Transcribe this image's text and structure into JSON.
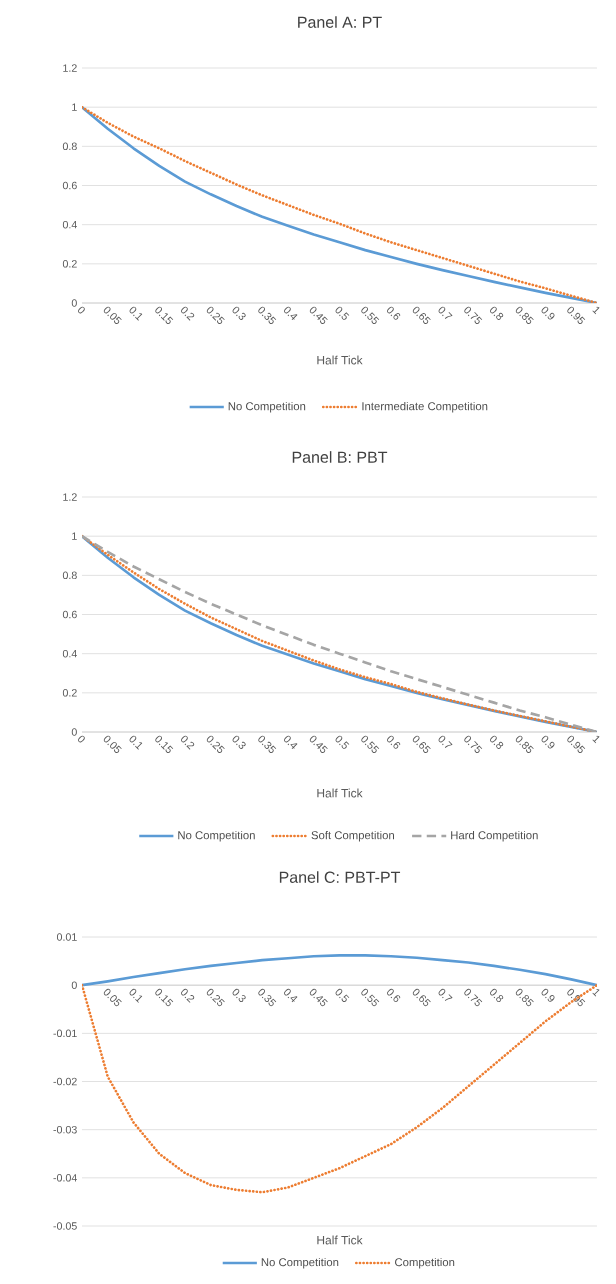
{
  "chart_data": [
    {
      "type": "line",
      "title": "Panel A: PT",
      "xlabel": "Half Tick",
      "categories": [
        "0",
        "0.05",
        "0.1",
        "0.15",
        "0.2",
        "0.25",
        "0.3",
        "0.35",
        "0.4",
        "0.45",
        "0.5",
        "0.55",
        "0.6",
        "0.65",
        "0.7",
        "0.75",
        "0.8",
        "0.85",
        "0.9",
        "0.95",
        "1"
      ],
      "series": [
        {
          "name": "No Competition",
          "color": "#5b9bd5",
          "line_style": "solid",
          "values": [
            1,
            0.89,
            0.79,
            0.7,
            0.62,
            0.555,
            0.495,
            0.44,
            0.395,
            0.35,
            0.31,
            0.27,
            0.235,
            0.2,
            0.168,
            0.138,
            0.108,
            0.08,
            0.052,
            0.026,
            0
          ]
        },
        {
          "name": "Intermediate Competition",
          "color": "#ed7d31",
          "line_style": "dotted",
          "values": [
            1,
            0.92,
            0.85,
            0.79,
            0.725,
            0.665,
            0.605,
            0.55,
            0.5,
            0.45,
            0.405,
            0.355,
            0.31,
            0.27,
            0.23,
            0.19,
            0.15,
            0.11,
            0.075,
            0.037,
            0
          ]
        }
      ],
      "ylim": [
        0,
        1.2
      ],
      "yticks": [
        0,
        0.2,
        0.4,
        0.6,
        0.8,
        1,
        1.2
      ],
      "grid": "y",
      "legend": "bottom"
    },
    {
      "type": "line",
      "title": "Panel B: PBT",
      "xlabel": "Half Tick",
      "categories": [
        "0",
        "0.05",
        "0.1",
        "0.15",
        "0.2",
        "0.25",
        "0.3",
        "0.35",
        "0.4",
        "0.45",
        "0.5",
        "0.55",
        "0.6",
        "0.65",
        "0.7",
        "0.75",
        "0.8",
        "0.85",
        "0.9",
        "0.95",
        "1"
      ],
      "series": [
        {
          "name": "No Competition",
          "color": "#5b9bd5",
          "line_style": "solid",
          "values": [
            1,
            0.89,
            0.79,
            0.7,
            0.62,
            0.555,
            0.495,
            0.44,
            0.395,
            0.35,
            0.31,
            0.27,
            0.235,
            0.2,
            0.168,
            0.138,
            0.108,
            0.08,
            0.052,
            0.026,
            0
          ]
        },
        {
          "name": "Soft Competition",
          "color": "#ed7d31",
          "line_style": "dotted",
          "values": [
            1,
            0.905,
            0.815,
            0.73,
            0.655,
            0.585,
            0.525,
            0.465,
            0.415,
            0.365,
            0.32,
            0.28,
            0.245,
            0.205,
            0.172,
            0.14,
            0.11,
            0.082,
            0.055,
            0.027,
            0
          ]
        },
        {
          "name": "Hard Competition",
          "color": "#a5a5a5",
          "line_style": "dashed",
          "values": [
            1,
            0.92,
            0.845,
            0.78,
            0.715,
            0.655,
            0.6,
            0.545,
            0.495,
            0.445,
            0.4,
            0.355,
            0.31,
            0.27,
            0.23,
            0.19,
            0.15,
            0.11,
            0.075,
            0.037,
            0
          ]
        }
      ],
      "ylim": [
        0,
        1.2
      ],
      "yticks": [
        0,
        0.2,
        0.4,
        0.6,
        0.8,
        1,
        1.2
      ],
      "grid": "y",
      "legend": "bottom"
    },
    {
      "type": "line",
      "title": "Panel C: PBT-PT",
      "xlabel": "Half Tick",
      "categories": [
        "0",
        "0.05",
        "0.1",
        "0.15",
        "0.2",
        "0.25",
        "0.3",
        "0.35",
        "0.4",
        "0.45",
        "0.5",
        "0.55",
        "0.6",
        "0.65",
        "0.7",
        "0.75",
        "0.8",
        "0.85",
        "0.9",
        "0.95",
        "1"
      ],
      "series": [
        {
          "name": "No Competition",
          "color": "#5b9bd5",
          "line_style": "solid",
          "values": [
            0,
            0.0008,
            0.0017,
            0.0025,
            0.0033,
            0.004,
            0.0046,
            0.0052,
            0.0056,
            0.006,
            0.0062,
            0.0062,
            0.006,
            0.0057,
            0.0052,
            0.0047,
            0.004,
            0.0032,
            0.0023,
            0.0012,
            0
          ]
        },
        {
          "name": "Competition",
          "color": "#ed7d31",
          "line_style": "dotted",
          "values": [
            0,
            -0.019,
            -0.0285,
            -0.035,
            -0.039,
            -0.0415,
            -0.0425,
            -0.043,
            -0.042,
            -0.04,
            -0.038,
            -0.0355,
            -0.033,
            -0.0295,
            -0.0255,
            -0.021,
            -0.0165,
            -0.012,
            -0.0075,
            -0.0035,
            0
          ]
        }
      ],
      "ylim": [
        -0.05,
        0.01
      ],
      "yticks": [
        0.01,
        0,
        -0.01,
        -0.02,
        -0.03,
        -0.04,
        -0.05
      ],
      "grid": "y",
      "legend": "bottom"
    }
  ]
}
